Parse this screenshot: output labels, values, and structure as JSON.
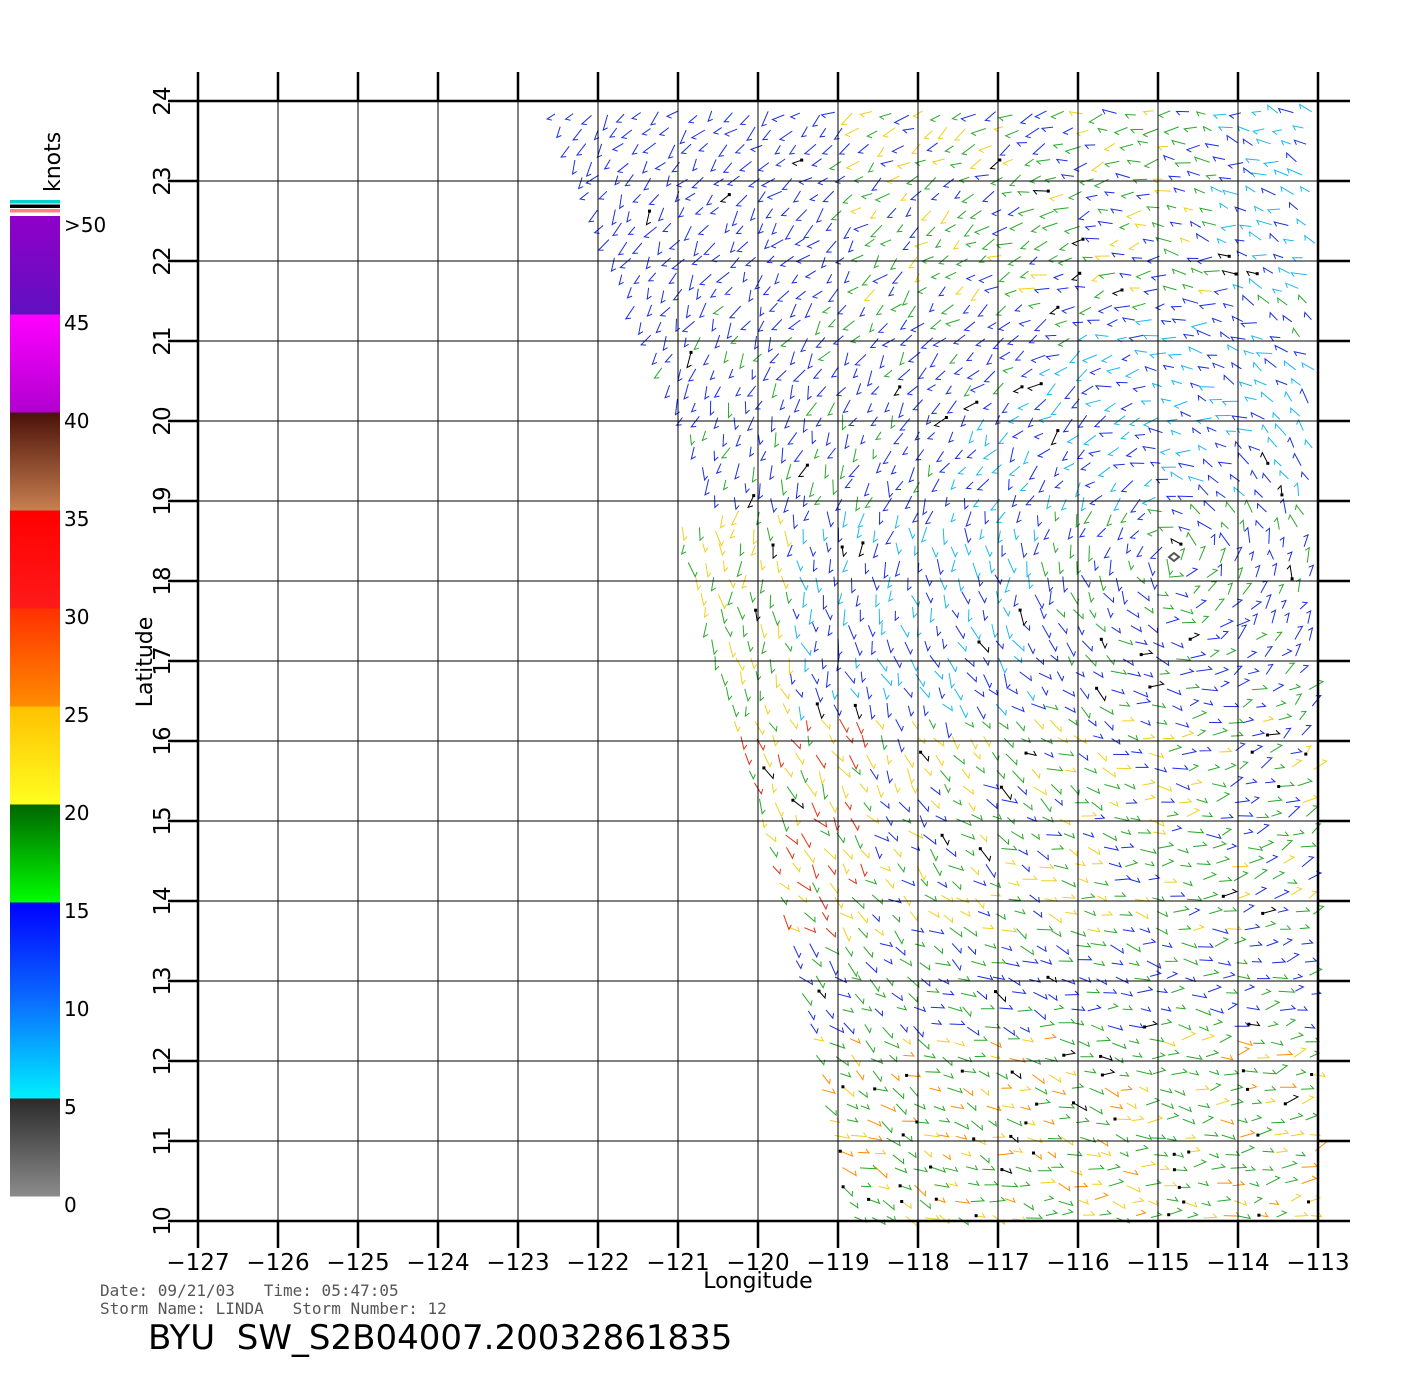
{
  "plot": {
    "x_axis": {
      "title": "Longitude",
      "min": -127,
      "max": -113,
      "ticks": [
        "-127",
        "-126",
        "-125",
        "-124",
        "-123",
        "-122",
        "-121",
        "-120",
        "-119",
        "-118",
        "-117",
        "-116",
        "-115",
        "-114",
        "-113"
      ]
    },
    "y_axis": {
      "title": "Latitude",
      "min": 10,
      "max": 24,
      "ticks": [
        "10",
        "11",
        "12",
        "13",
        "14",
        "15",
        "16",
        "17",
        "18",
        "19",
        "20",
        "21",
        "22",
        "23",
        "24"
      ]
    },
    "grid": true,
    "storm_center": {
      "lon": -114.8,
      "lat": 18.3
    }
  },
  "colorbar": {
    "unit": "knots",
    "labels": [
      ">50",
      "45",
      "40",
      "35",
      "30",
      "25",
      "20",
      "15",
      "10",
      "5",
      "0"
    ],
    "bands": [
      {
        "range": "0-5",
        "color_top": "#2a2a2a",
        "color_bottom": "#8c8c8c"
      },
      {
        "range": "5-10",
        "color_top": "#0a6cff",
        "color_bottom": "#00f0ff"
      },
      {
        "range": "10-15",
        "color_top": "#0000ff",
        "color_bottom": "#0a6cff"
      },
      {
        "range": "15-20",
        "color_top": "#006400",
        "color_bottom": "#00ff00"
      },
      {
        "range": "20-25",
        "color_top": "#ffc000",
        "color_bottom": "#ffff20"
      },
      {
        "range": "25-30",
        "color_top": "#ff3000",
        "color_bottom": "#ff8c00"
      },
      {
        "range": "30-35",
        "color_top": "#ff0000",
        "color_bottom": "#ff1a1a"
      },
      {
        "range": "35-40",
        "color_top": "#4a1008",
        "color_bottom": "#c88050"
      },
      {
        "range": "40-45",
        "color_top": "#ff00ff",
        "color_bottom": "#b000d0"
      },
      {
        "range": "45-50",
        "color_top": "#9000c8",
        "color_bottom": "#6010c0"
      }
    ],
    "top_strip_colors": [
      "#00d0d0",
      "#000000",
      "#ff8080"
    ]
  },
  "wind_colors": {
    "blue": "#1a2ee0",
    "cyan": "#1ab8f0",
    "green": "#2aa82a",
    "yellow": "#f0d020",
    "orange": "#ff8c00",
    "red": "#e03010",
    "black": "#000000"
  },
  "meta": {
    "line1": "Date: 09/21/03   Time: 05:47:05",
    "line2": "Storm Name: LINDA   Storm Number: 12",
    "title": "BYU  SW_S2B04007.20032861835"
  }
}
